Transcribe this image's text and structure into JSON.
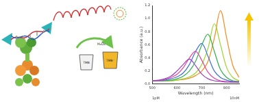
{
  "diagram": {
    "arrow_label": "H₂O₂",
    "cup_labels": [
      "TMB",
      "TMB⁺"
    ]
  },
  "chart_data": {
    "type": "line",
    "x_label": "Wavelength (nm)",
    "y_label": "Absorbance (a.u.)",
    "annotations": [
      "1pM",
      "10nM"
    ],
    "x": [
      500,
      525,
      550,
      575,
      600,
      625,
      650,
      675,
      700,
      725,
      750,
      775,
      800,
      825,
      850
    ],
    "series": [
      {
        "color": "#9b3fc4",
        "values": [
          0.05,
          0.06,
          0.08,
          0.12,
          0.2,
          0.3,
          0.38,
          0.28,
          0.15,
          0.08,
          0.05,
          0.04,
          0.03,
          0.03,
          0.03
        ]
      },
      {
        "color": "#e0449a",
        "values": [
          0.05,
          0.05,
          0.07,
          0.1,
          0.15,
          0.25,
          0.4,
          0.5,
          0.36,
          0.18,
          0.09,
          0.05,
          0.04,
          0.03,
          0.03
        ]
      },
      {
        "color": "#3f6fd8",
        "values": [
          0.05,
          0.05,
          0.06,
          0.08,
          0.11,
          0.17,
          0.3,
          0.5,
          0.62,
          0.42,
          0.2,
          0.1,
          0.06,
          0.04,
          0.03
        ]
      },
      {
        "color": "#2fb04c",
        "values": [
          0.05,
          0.05,
          0.05,
          0.06,
          0.08,
          0.12,
          0.2,
          0.35,
          0.6,
          0.76,
          0.5,
          0.22,
          0.1,
          0.05,
          0.04
        ]
      },
      {
        "color": "#9bd42a",
        "values": [
          0.05,
          0.05,
          0.05,
          0.05,
          0.06,
          0.08,
          0.11,
          0.17,
          0.3,
          0.55,
          0.92,
          0.6,
          0.25,
          0.1,
          0.05
        ]
      },
      {
        "color": "#f28a1e",
        "values": [
          0.05,
          0.05,
          0.05,
          0.05,
          0.06,
          0.07,
          0.09,
          0.13,
          0.2,
          0.35,
          0.7,
          1.12,
          0.7,
          0.28,
          0.1
        ]
      }
    ],
    "xlim": [
      500,
      850
    ],
    "xticks": [
      500,
      600,
      700,
      800
    ],
    "ylim": [
      0,
      1.2
    ],
    "yticks": [
      {
        "value": 0,
        "label": "0.0"
      },
      0.2,
      0.4,
      0.6,
      0.8,
      {
        "value": 1,
        "label": "1.0"
      },
      1.2
    ],
    "grid": false
  }
}
